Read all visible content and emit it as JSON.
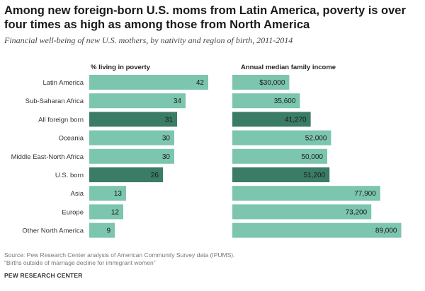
{
  "title": "Among new foreign-born U.S. moms from Latin America, poverty is over four times as high as among those from North America",
  "subtitle": "Financial well-being of new U.S. mothers, by nativity and region of birth, 2011-2014",
  "source": "Source: Pew Research Center analysis of American Community Survey data (IPUMS).",
  "report": "“Births outside of marriage decline for immigrant women”",
  "organization": "PEW RESEARCH CENTER",
  "colors": {
    "light": "#7cc5ae",
    "dark": "#3a7c66"
  },
  "chart_data": {
    "type": "bar",
    "orientation": "horizontal",
    "categories": [
      "Latin America",
      "Sub-Saharan Africa",
      "All foreign born",
      "Oceania",
      "Middle East-North Africa",
      "U.S. born",
      "Asia",
      "Europe",
      "Other North America"
    ],
    "highlight": [
      false,
      false,
      true,
      false,
      false,
      true,
      false,
      false,
      false
    ],
    "series": [
      {
        "name": "% living in poverty",
        "values": [
          42,
          34,
          31,
          30,
          30,
          26,
          13,
          12,
          9
        ],
        "labels": [
          "42",
          "34",
          "31",
          "30",
          "30",
          "26",
          "13",
          "12",
          "9"
        ],
        "xlim": [
          0,
          50
        ]
      },
      {
        "name": "Annual median family income",
        "values": [
          30000,
          35600,
          41270,
          52000,
          50000,
          51200,
          77900,
          73200,
          89000
        ],
        "labels": [
          "$30,000",
          "35,600",
          "41,270",
          "52,000",
          "50,000",
          "51,200",
          "77,900",
          "73,200",
          "89,000"
        ],
        "xlim": [
          0,
          100000
        ]
      }
    ]
  }
}
